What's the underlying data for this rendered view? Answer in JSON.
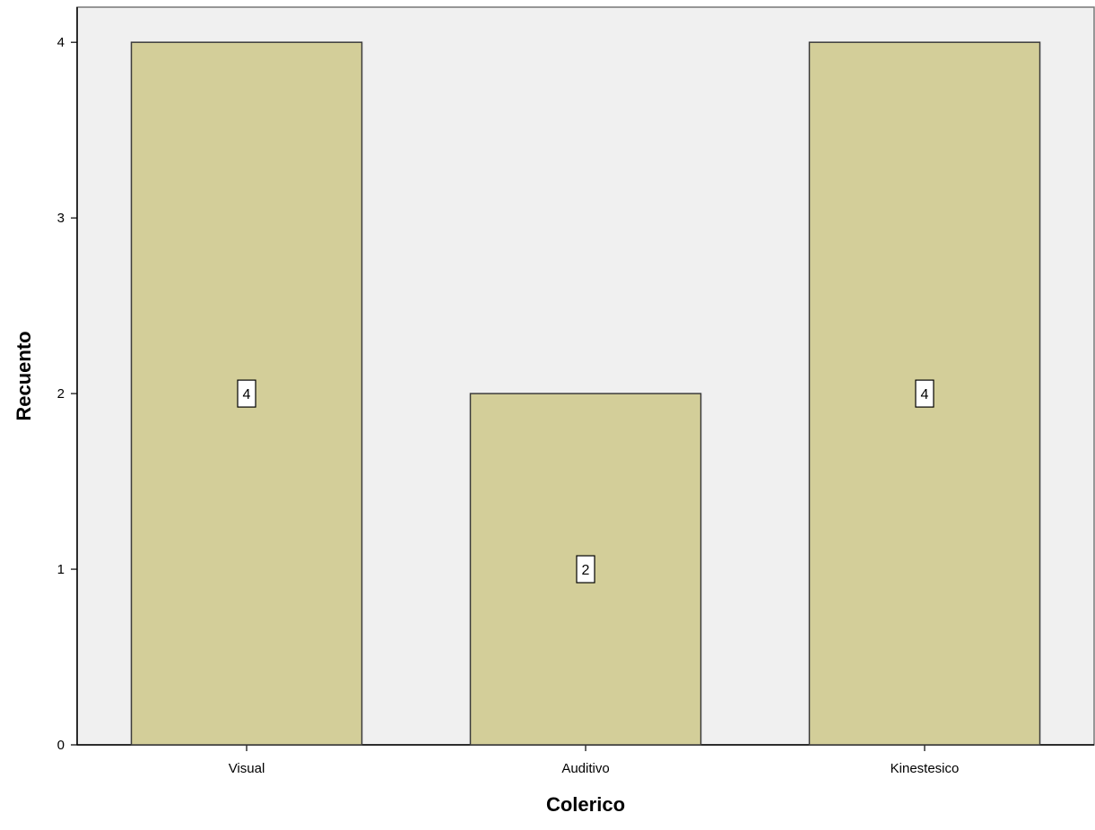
{
  "chart_data": {
    "type": "bar",
    "categories": [
      "Visual",
      "Auditivo",
      "Kinestesico"
    ],
    "values": [
      4,
      2,
      4
    ],
    "data_labels": [
      "4",
      "2",
      "4"
    ],
    "xlabel": "Colerico",
    "ylabel": "Recuento",
    "ylim": [
      0,
      4.2
    ],
    "yticks": [
      "0",
      "1",
      "2",
      "3",
      "4"
    ],
    "grid": false,
    "colors": {
      "plot_background": "#f0f0f0",
      "bar_fill": "#d3ce99",
      "bar_stroke": "#3c3c3c",
      "label_box": "#ffffff"
    }
  }
}
